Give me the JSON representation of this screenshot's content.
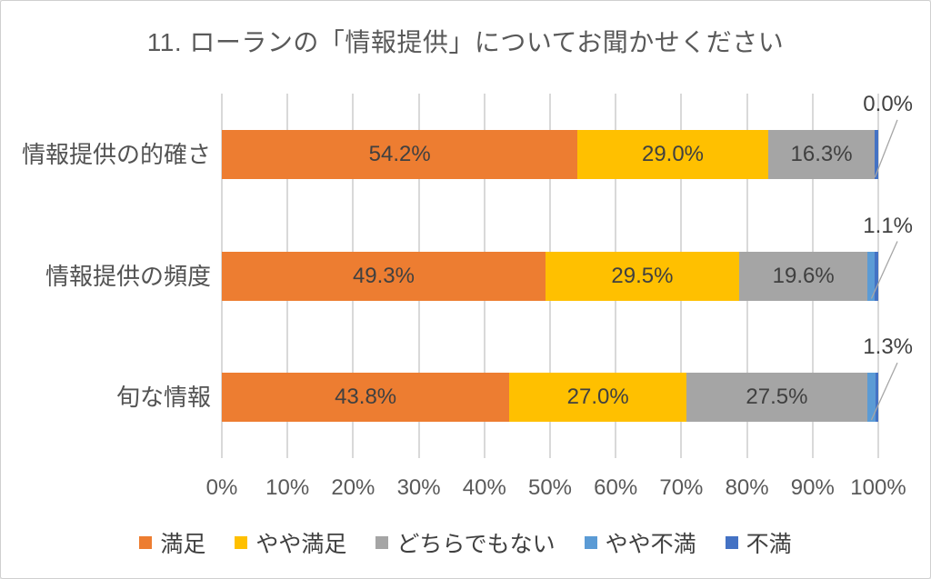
{
  "frame": {
    "background": "#FFFFFF",
    "border_color": "#CFCFCF"
  },
  "chart_data": {
    "type": "bar",
    "stacked": true,
    "orientation": "horizontal",
    "title": "11. ローランの「情報提供」についてお聞かせください",
    "categories": [
      "情報提供の的確さ",
      "情報提供の頻度",
      "旬な情報"
    ],
    "series": [
      {
        "name": "満足",
        "color": "#ED7D31",
        "values": [
          54.2,
          49.3,
          43.8
        ],
        "label_style": "inside"
      },
      {
        "name": "やや満足",
        "color": "#FFC000",
        "values": [
          29.0,
          29.5,
          27.0
        ],
        "label_style": "inside"
      },
      {
        "name": "どちらでもない",
        "color": "#A5A5A5",
        "values": [
          16.3,
          19.6,
          27.5
        ],
        "label_style": "inside"
      },
      {
        "name": "やや不満",
        "color": "#5B9BD5",
        "values": [
          0.0,
          1.1,
          1.3
        ],
        "label_style": "callout"
      },
      {
        "name": "不満",
        "color": "#4472C4",
        "values": [
          0.5,
          0.5,
          0.4
        ],
        "label_style": "none"
      }
    ],
    "callout_labels": [
      "0.0%",
      "1.1%",
      "1.3%"
    ],
    "x_ticks": [
      "0%",
      "10%",
      "20%",
      "30%",
      "40%",
      "50%",
      "60%",
      "70%",
      "80%",
      "90%",
      "100%"
    ],
    "xlim": [
      0,
      100
    ],
    "grid": "vertical",
    "legend_position": "bottom",
    "colors": {
      "data_label": "#404040",
      "axis_label": "#595959",
      "title": "#595959",
      "gridline": "#D9D9D9",
      "leader_line": "#A6A6A6"
    }
  }
}
